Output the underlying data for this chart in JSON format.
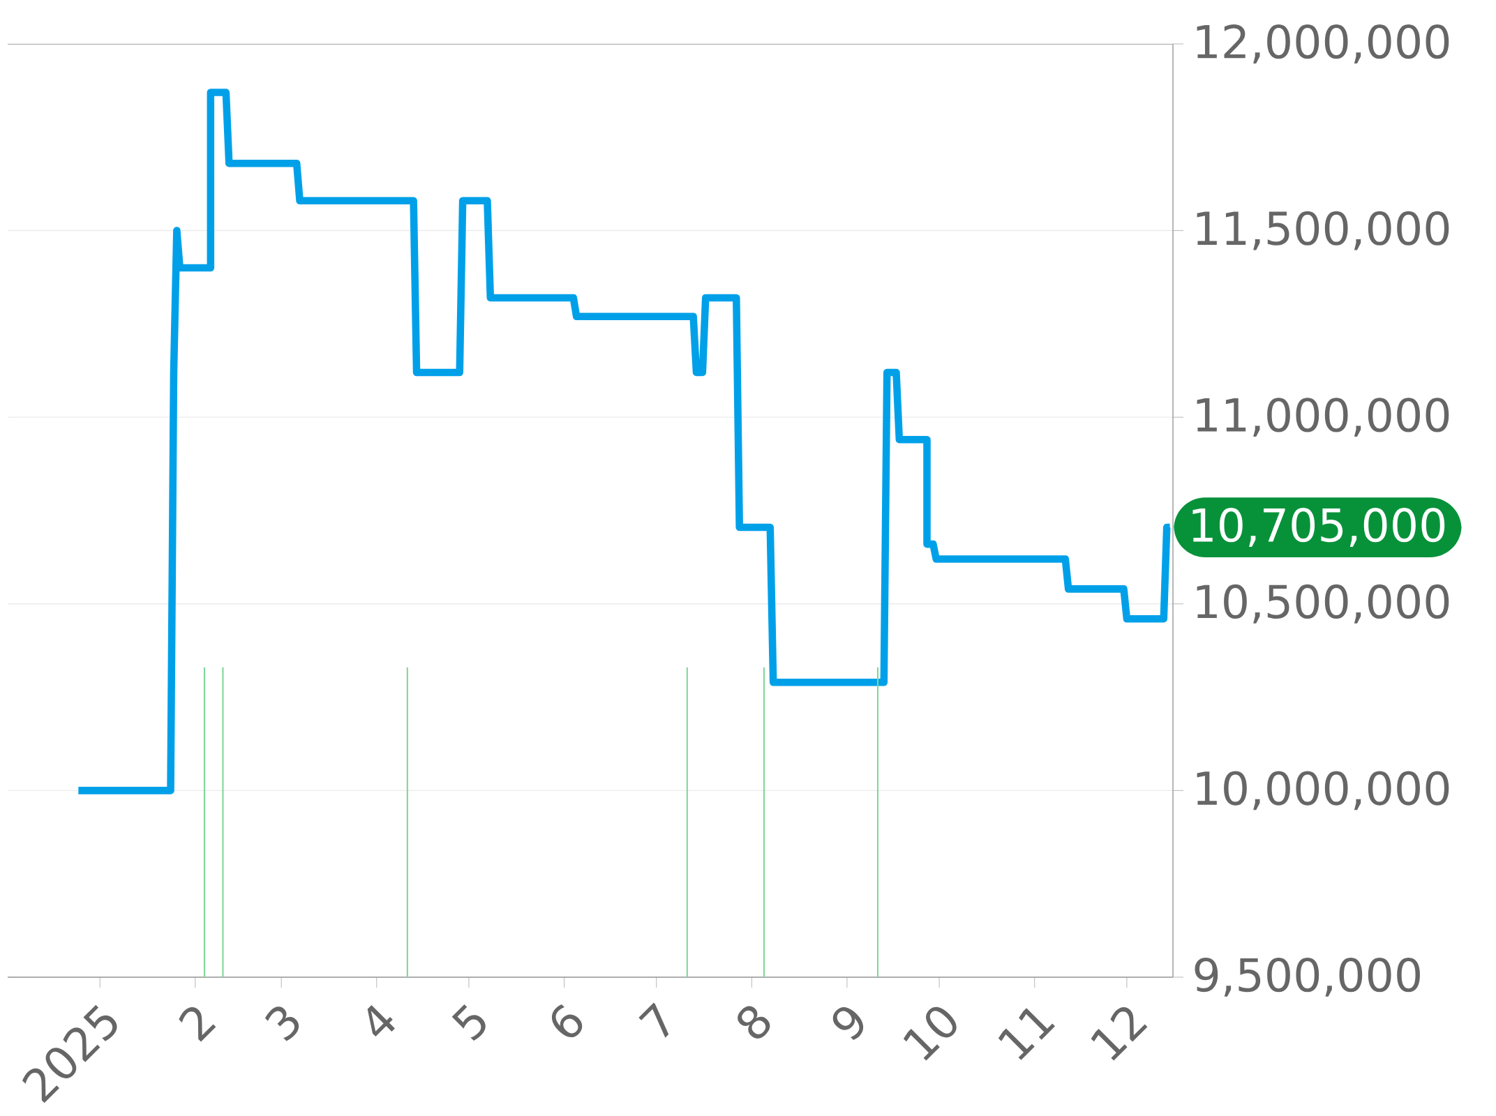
{
  "chart_data": {
    "type": "line",
    "x": [
      "2024-12-25",
      "2025-01-24",
      "2025-01-25",
      "2025-01-26",
      "2025-01-27",
      "2025-02-06",
      "2025-02-06",
      "2025-02-11",
      "2025-02-12",
      "2025-03-06",
      "2025-03-07",
      "2025-04-13",
      "2025-04-14",
      "2025-04-28",
      "2025-04-29",
      "2025-05-07",
      "2025-05-08",
      "2025-06-04",
      "2025-06-05",
      "2025-07-13",
      "2025-07-14",
      "2025-07-16",
      "2025-07-17",
      "2025-07-27",
      "2025-07-28",
      "2025-08-07",
      "2025-08-08",
      "2025-09-13",
      "2025-09-14",
      "2025-09-17",
      "2025-09-18",
      "2025-09-27",
      "2025-09-27",
      "2025-09-29",
      "2025-09-30",
      "2025-11-11",
      "2025-11-12",
      "2025-11-30",
      "2025-12-01",
      "2025-12-13",
      "2025-12-14",
      "2025-12-15"
    ],
    "series": [
      {
        "color": "#00a0e9",
        "values": [
          10000000,
          10000000,
          11120000,
          11500000,
          11400000,
          11400000,
          11870000,
          11870000,
          11680000,
          11680000,
          11580000,
          11580000,
          11120000,
          11120000,
          11580000,
          11580000,
          11320000,
          11320000,
          11270000,
          11270000,
          11120000,
          11120000,
          11320000,
          11320000,
          10705000,
          10705000,
          10290000,
          10290000,
          11120000,
          11120000,
          10940000,
          10940000,
          10660000,
          10660000,
          10620000,
          10620000,
          10540000,
          10540000,
          10460000,
          10460000,
          10705000,
          10705000
        ]
      },
      {
        "type": "bar",
        "color": "#82d69a",
        "x": [
          "2025-02-04",
          "2025-02-10",
          "2025-04-11",
          "2025-07-11",
          "2025-08-05",
          "2025-09-11"
        ],
        "values": [
          10330000,
          10330000,
          10330000,
          10330000,
          10330000,
          10330000
        ]
      }
    ],
    "xlim": [
      "2024-12-02",
      "2025-12-16"
    ],
    "xticks": [
      {
        "value": "2025-01-01",
        "label": "2025"
      },
      {
        "value": "2025-02-01",
        "label": "2"
      },
      {
        "value": "2025-03-01",
        "label": "3"
      },
      {
        "value": "2025-04-01",
        "label": "4"
      },
      {
        "value": "2025-05-01",
        "label": "5"
      },
      {
        "value": "2025-06-01",
        "label": "6"
      },
      {
        "value": "2025-07-01",
        "label": "7"
      },
      {
        "value": "2025-08-01",
        "label": "8"
      },
      {
        "value": "2025-09-01",
        "label": "9"
      },
      {
        "value": "2025-10-01",
        "label": "10"
      },
      {
        "value": "2025-11-01",
        "label": "11"
      },
      {
        "value": "2025-12-01",
        "label": "12"
      }
    ],
    "ylim": [
      9500000,
      12000000
    ],
    "yticks": [
      {
        "value": 9500000,
        "label": "9,500,000"
      },
      {
        "value": 10000000,
        "label": "10,000,000"
      },
      {
        "value": 10500000,
        "label": "10,500,000"
      },
      {
        "value": 11000000,
        "label": "11,000,000"
      },
      {
        "value": 11500000,
        "label": "11,500,000"
      },
      {
        "value": 12000000,
        "label": "12,000,000"
      }
    ],
    "grid": "y",
    "annotations": [
      {
        "text": "10,705,000",
        "x": "2025-12-15",
        "y": 10705000
      }
    ]
  }
}
